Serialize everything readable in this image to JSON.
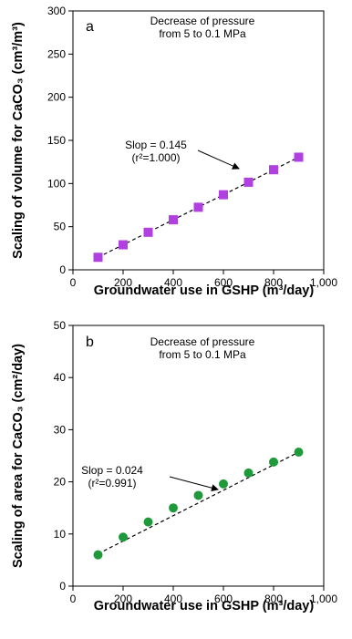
{
  "chart_data": [
    {
      "type": "scatter",
      "panel_label": "a",
      "note": [
        "Decrease of pressure",
        "from 5 to 0.1 MPa"
      ],
      "xlabel": "Groundwater use in GSHP (m³/day)",
      "ylabel": "Scaling of volume for CaCO₃ (cm³/m³)",
      "xlim": [
        0,
        1000
      ],
      "ylim": [
        0,
        300
      ],
      "x_ticks": [
        0,
        200,
        400,
        600,
        800,
        1000
      ],
      "x_tick_labels": [
        "0",
        "200",
        "400",
        "600",
        "800",
        "1,000"
      ],
      "y_ticks": [
        0,
        50,
        100,
        150,
        200,
        250,
        300
      ],
      "y_tick_labels": [
        "0",
        "50",
        "100",
        "150",
        "200",
        "250",
        "300"
      ],
      "marker": "square",
      "color": "#b040e0",
      "x": [
        100,
        200,
        300,
        400,
        500,
        600,
        700,
        800,
        900
      ],
      "y": [
        14.5,
        29,
        43.5,
        58,
        72.5,
        87,
        101.5,
        116,
        130.5
      ],
      "trendline": {
        "x": [
          100,
          900
        ],
        "y": [
          14.5,
          130.5
        ]
      },
      "annotation": [
        "Slop = 0.145",
        "(r²=1.000)"
      ],
      "grid": false
    },
    {
      "type": "scatter",
      "panel_label": "b",
      "note": [
        "Decrease of pressure",
        "from 5 to 0.1 MPa"
      ],
      "xlabel": "Groundwater use in GSHP (m³/day)",
      "ylabel": "Scaling of area for CaCO₃ (cm²/day)",
      "xlim": [
        0,
        1000
      ],
      "ylim": [
        0,
        50
      ],
      "x_ticks": [
        0,
        200,
        400,
        600,
        800,
        1000
      ],
      "x_tick_labels": [
        "0",
        "200",
        "400",
        "600",
        "800",
        "1,000"
      ],
      "y_ticks": [
        0,
        10,
        20,
        30,
        40,
        50
      ],
      "y_tick_labels": [
        "0",
        "10",
        "20",
        "30",
        "40",
        "50"
      ],
      "marker": "circle",
      "color": "#1f9a3a",
      "x": [
        100,
        200,
        300,
        400,
        500,
        600,
        700,
        800,
        900
      ],
      "y": [
        6.0,
        9.4,
        12.3,
        15.0,
        17.4,
        19.6,
        21.7,
        23.8,
        25.7
      ],
      "trendline": {
        "x": [
          100,
          900
        ],
        "y": [
          6.2,
          25.7
        ]
      },
      "annotation": [
        "Slop = 0.024",
        "(r²=0.991)"
      ],
      "grid": false
    }
  ]
}
